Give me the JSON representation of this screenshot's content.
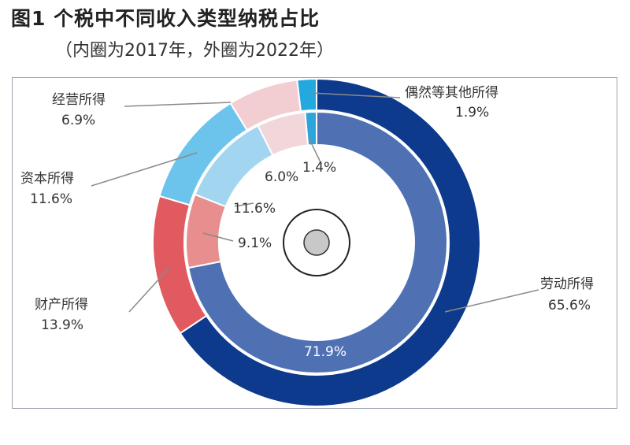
{
  "title": "图1 个税中不同收入类型纳税占比",
  "subtitle": "（内圈为2017年，外圈为2022年）",
  "chart_data": {
    "type": "donut",
    "title": "图1 个税中不同收入类型纳税占比",
    "subtitle": "（内圈为2017年，外圈为2022年）",
    "series": [
      {
        "year": "2017",
        "ring": "inner",
        "values": [
          {
            "category": "劳动所得",
            "value": 71.9,
            "label": "71.9%",
            "color": "#4f71b3"
          },
          {
            "category": "财产所得",
            "value": 9.1,
            "label": "9.1%",
            "color": "#e88e8e"
          },
          {
            "category": "资本所得",
            "value": 11.6,
            "label": "11.6%",
            "color": "#a2d6f0"
          },
          {
            "category": "经营所得",
            "value": 6.0,
            "label": "6.0%",
            "color": "#f1d6da"
          },
          {
            "category": "偶然等其他所得",
            "value": 1.4,
            "label": "1.4%",
            "color": "#2ba5da"
          }
        ]
      },
      {
        "year": "2022",
        "ring": "outer",
        "values": [
          {
            "category": "劳动所得",
            "value": 65.6,
            "label": "65.6%",
            "color": "#0d3a8c"
          },
          {
            "category": "财产所得",
            "value": 13.9,
            "label": "13.9%",
            "color": "#e05a5f"
          },
          {
            "category": "资本所得",
            "value": 11.6,
            "label": "11.6%",
            "color": "#6cc4ec"
          },
          {
            "category": "经营所得",
            "value": 6.9,
            "label": "6.9%",
            "color": "#f2ced3"
          },
          {
            "category": "偶然等其他所得",
            "value": 1.9,
            "label": "1.9%",
            "color": "#23a8e0"
          }
        ]
      }
    ],
    "legend_labels": [
      {
        "category": "偶然等其他所得",
        "value_label": "1.9%"
      },
      {
        "category": "经营所得",
        "value_label": "6.9%"
      },
      {
        "category": "资本所得",
        "value_label": "11.6%"
      },
      {
        "category": "财产所得",
        "value_label": "13.9%"
      },
      {
        "category": "劳动所得",
        "value_label": "65.6%"
      }
    ]
  }
}
